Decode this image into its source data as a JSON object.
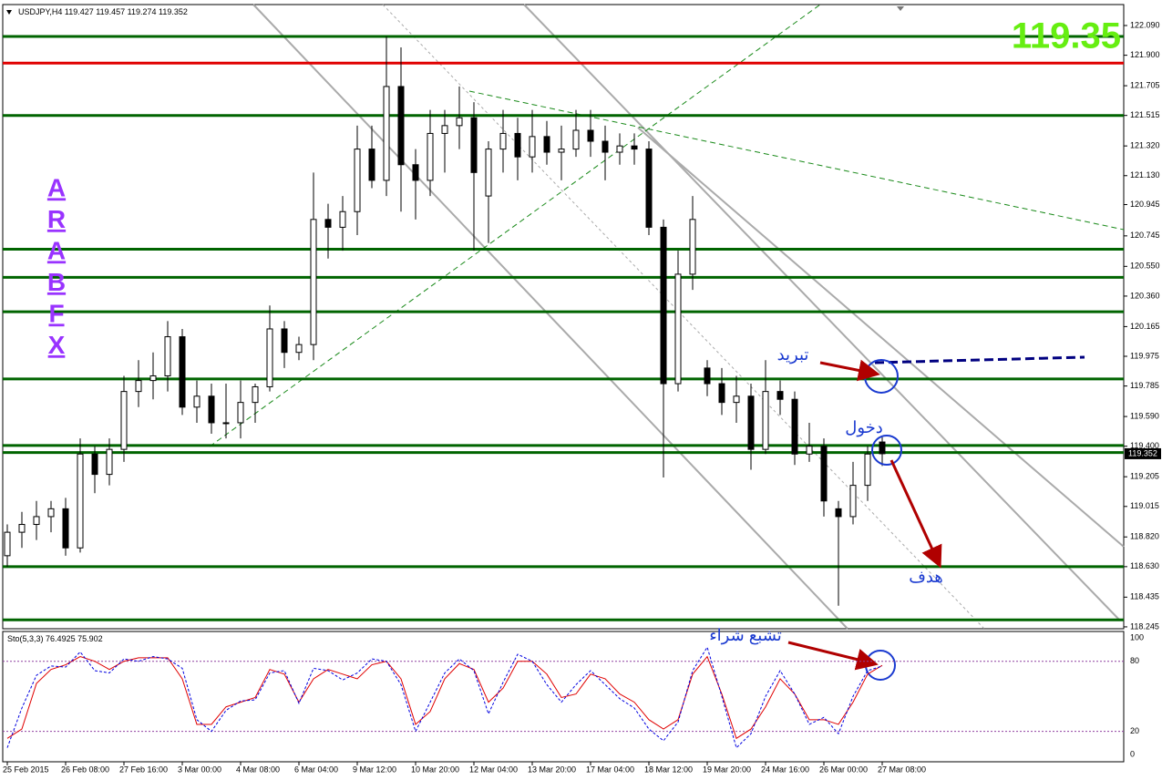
{
  "chart_data": [
    {
      "type": "candlestick",
      "title": "USDJPY,H4",
      "open": [
        118.7,
        118.85,
        118.9,
        118.95,
        119.0,
        118.75,
        119.35,
        119.22,
        119.38,
        119.75,
        119.82,
        119.85,
        120.1,
        119.65,
        119.72,
        119.55,
        119.55,
        119.68,
        119.78,
        120.15,
        120.0,
        120.05,
        120.85,
        120.8,
        120.9,
        121.3,
        121.1,
        121.7,
        121.2,
        121.1,
        121.4,
        121.45,
        121.5,
        121.0,
        121.3,
        121.4,
        121.25,
        121.38,
        121.28,
        121.3,
        121.42,
        121.35,
        121.28,
        121.32,
        121.3,
        120.8,
        119.8,
        120.5,
        119.9,
        119.8,
        119.68,
        119.72,
        119.38,
        119.75,
        119.7,
        119.35,
        119.4,
        119.0,
        118.95,
        119.15,
        119.427
      ],
      "high": [
        118.9,
        118.98,
        119.05,
        119.05,
        119.07,
        119.45,
        119.4,
        119.45,
        119.85,
        119.95,
        120.0,
        120.2,
        120.15,
        119.82,
        119.8,
        119.8,
        119.82,
        119.8,
        120.3,
        120.2,
        120.1,
        121.15,
        120.95,
        121.0,
        121.45,
        121.45,
        122.02,
        121.95,
        121.3,
        121.55,
        121.55,
        121.7,
        121.6,
        121.35,
        121.55,
        121.5,
        121.55,
        121.48,
        121.45,
        121.55,
        121.55,
        121.45,
        121.4,
        121.4,
        121.35,
        120.85,
        120.65,
        121.0,
        119.95,
        119.9,
        119.85,
        119.8,
        119.95,
        119.82,
        119.75,
        119.55,
        119.45,
        119.05,
        119.3,
        119.4,
        119.457
      ],
      "low": [
        118.63,
        118.75,
        118.8,
        118.85,
        118.7,
        118.72,
        119.1,
        119.15,
        119.3,
        119.65,
        119.7,
        119.75,
        119.6,
        119.55,
        119.48,
        119.45,
        119.45,
        119.55,
        119.75,
        119.9,
        119.95,
        119.95,
        120.6,
        120.65,
        120.75,
        121.05,
        121.0,
        120.9,
        120.85,
        121.0,
        121.15,
        121.3,
        120.65,
        120.7,
        121.15,
        121.1,
        121.15,
        121.2,
        121.1,
        121.25,
        121.25,
        121.1,
        121.2,
        121.2,
        120.75,
        119.2,
        119.75,
        120.4,
        119.72,
        119.6,
        119.55,
        119.25,
        119.35,
        119.6,
        119.28,
        119.3,
        118.95,
        118.38,
        118.9,
        119.05,
        119.274
      ],
      "close": [
        118.85,
        118.9,
        118.95,
        119.0,
        118.75,
        119.35,
        119.22,
        119.38,
        119.75,
        119.82,
        119.85,
        120.1,
        119.65,
        119.72,
        119.55,
        119.55,
        119.68,
        119.78,
        120.15,
        120.0,
        120.05,
        120.85,
        120.8,
        120.9,
        121.3,
        121.1,
        121.7,
        121.2,
        121.1,
        121.4,
        121.45,
        121.5,
        121.15,
        121.3,
        121.4,
        121.25,
        121.38,
        121.28,
        121.3,
        121.42,
        121.35,
        121.28,
        121.32,
        121.3,
        120.8,
        119.8,
        120.5,
        120.85,
        119.8,
        119.68,
        119.72,
        119.38,
        119.75,
        119.7,
        119.35,
        119.4,
        119.05,
        118.95,
        119.15,
        119.35,
        119.352
      ],
      "ylim": [
        118.233,
        122.224
      ],
      "yticks": [
        {
          "value": 122.09,
          "label": "122.090"
        },
        {
          "value": 121.9,
          "label": "121.900"
        },
        {
          "value": 121.705,
          "label": "121.705"
        },
        {
          "value": 121.515,
          "label": "121.515"
        },
        {
          "value": 121.32,
          "label": "121.320"
        },
        {
          "value": 121.13,
          "label": "121.130"
        },
        {
          "value": 120.945,
          "label": "120.945"
        },
        {
          "value": 120.745,
          "label": "120.745"
        },
        {
          "value": 120.55,
          "label": "120.550"
        },
        {
          "value": 120.36,
          "label": "120.360"
        },
        {
          "value": 120.165,
          "label": "120.165"
        },
        {
          "value": 119.975,
          "label": "119.975"
        },
        {
          "value": 119.785,
          "label": "119.785"
        },
        {
          "value": 119.59,
          "label": "119.590"
        },
        {
          "value": 119.4,
          "label": "119.400"
        },
        {
          "value": 119.205,
          "label": "119.205"
        },
        {
          "value": 119.015,
          "label": "119.015"
        },
        {
          "value": 118.82,
          "label": "118.820"
        },
        {
          "value": 118.63,
          "label": "118.630"
        },
        {
          "value": 118.435,
          "label": "118.435"
        },
        {
          "value": 118.245,
          "label": "118.245"
        }
      ],
      "xticks": [
        {
          "value": 0,
          "label": "25 Feb 2015"
        },
        {
          "value": 4,
          "label": "26 Feb 08:00"
        },
        {
          "value": 8,
          "label": "27 Feb 16:00"
        },
        {
          "value": 12,
          "label": "3 Mar 00:00"
        },
        {
          "value": 16,
          "label": "4 Mar 08:00"
        },
        {
          "value": 20,
          "label": "6 Mar 04:00"
        },
        {
          "value": 24,
          "label": "9 Mar 12:00"
        },
        {
          "value": 28,
          "label": "10 Mar 20:00"
        },
        {
          "value": 32,
          "label": "12 Mar 04:00"
        },
        {
          "value": 36,
          "label": "13 Mar 20:00"
        },
        {
          "value": 40,
          "label": "17 Mar 04:00"
        },
        {
          "value": 44,
          "label": "18 Mar 12:00"
        },
        {
          "value": 48,
          "label": "19 Mar 20:00"
        },
        {
          "value": 52,
          "label": "24 Mar 16:00"
        },
        {
          "value": 56,
          "label": "26 Mar 00:00"
        },
        {
          "value": 60,
          "label": "27 Mar 08:00"
        }
      ],
      "levels": [
        {
          "value": 122.02,
          "color": "#006400"
        },
        {
          "value": 121.85,
          "color": "#e00000"
        },
        {
          "value": 121.515,
          "color": "#006400"
        },
        {
          "value": 120.66,
          "color": "#006400"
        },
        {
          "value": 120.48,
          "color": "#006400"
        },
        {
          "value": 120.26,
          "color": "#006400"
        },
        {
          "value": 119.83,
          "color": "#006400"
        },
        {
          "value": 119.405,
          "color": "#006400"
        },
        {
          "value": 119.36,
          "color": "#006400"
        },
        {
          "value": 118.63,
          "color": "#006400"
        },
        {
          "value": 118.29,
          "color": "#006400"
        }
      ],
      "big_price": 119.35,
      "watermark": [
        "A",
        "R",
        "A",
        "B",
        "F",
        "X"
      ],
      "annotations": [
        "تبريد",
        "دخول",
        "هدف",
        "تشبع شراء"
      ]
    },
    {
      "type": "line",
      "title": "Sto(5,3,3)",
      "ylim": [
        -6,
        105.5
      ],
      "yticks": [
        0,
        20,
        80,
        100
      ],
      "series": [
        {
          "color": "#e00000",
          "values": [
            14,
            22,
            61,
            73,
            77,
            84,
            80,
            73,
            80,
            83,
            83,
            83,
            65,
            26,
            26,
            41,
            45,
            49,
            73,
            69,
            45,
            65,
            73,
            69,
            65,
            77,
            80,
            65,
            26,
            37,
            65,
            78,
            73,
            45,
            57,
            80,
            80,
            69,
            49,
            52,
            69,
            65,
            52,
            45,
            30,
            22,
            30,
            69,
            84,
            52,
            14,
            22,
            41,
            65,
            52,
            30,
            30,
            26,
            45,
            69,
            76.4925
          ]
        },
        {
          "color": "#0000e0",
          "values": [
            6,
            40,
            68,
            76,
            75,
            88,
            72,
            70,
            82,
            80,
            84,
            82,
            74,
            30,
            20,
            38,
            46,
            47,
            70,
            72,
            44,
            74,
            72,
            64,
            70,
            82,
            80,
            60,
            20,
            45,
            70,
            82,
            72,
            35,
            62,
            86,
            80,
            60,
            45,
            60,
            72,
            60,
            48,
            40,
            22,
            12,
            28,
            72,
            92,
            50,
            6,
            18,
            50,
            72,
            52,
            26,
            32,
            18,
            50,
            72,
            75.902
          ]
        }
      ]
    }
  ]
}
